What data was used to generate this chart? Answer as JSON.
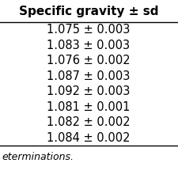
{
  "header": "Specific gravity ± sd",
  "rows": [
    "1.075 ± 0.003",
    "1.083 ± 0.003",
    "1.076 ± 0.002",
    "1.087 ± 0.003",
    "1.092 ± 0.003",
    "1.081 ± 0.001",
    "1.082 ± 0.002",
    "1.084 ± 0.002"
  ],
  "footer": "eterminations.",
  "bg_color": "#ffffff",
  "text_color": "#000000",
  "header_fontsize": 11.0,
  "row_fontsize": 10.5,
  "footer_fontsize": 9.0
}
